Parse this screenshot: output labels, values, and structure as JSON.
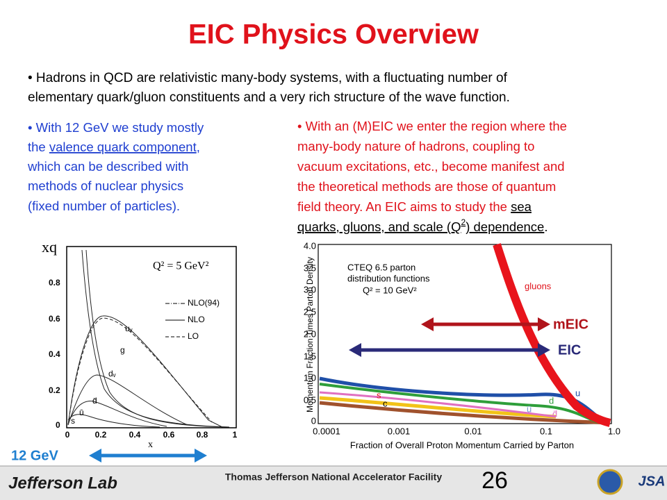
{
  "title": "EIC Physics Overview",
  "intro": [
    "• Hadrons in QCD are relativistic many-body systems, with a fluctuating number of",
    "elementary quark/gluon constituents and a very rich structure of the wave function."
  ],
  "left_bullet": [
    "• With 12 GeV we study mostly",
    "the ",
    "valence quark component",
    ",",
    "which can be described with",
    "methods of nuclear physics",
    "(fixed number of particles)."
  ],
  "right_bullet": [
    "• With an (M)EIC we enter the region where the",
    "many-body nature of hadrons, coupling to",
    "vacuum excitations, etc., become manifest and",
    "the theoretical methods are those of quantum",
    "field theory. An EIC aims to study the ",
    "sea",
    "quarks, gluons, and scale (Q",
    "2",
    ") dependence",
    "."
  ],
  "left_figure": {
    "ylabel": "xq",
    "xlabel": "x",
    "yticks": [
      "0.8",
      "0.6",
      "0.4",
      "0.2",
      "0"
    ],
    "xticks": [
      "0",
      "0.2",
      "0.4",
      "0.6",
      "0.8",
      "1"
    ],
    "annotation": "Q² = 5 GeV²",
    "legend": [
      "NLO(94)",
      "NLO",
      "LO"
    ],
    "curve_labels": [
      "uᵥ",
      "g",
      "dᵥ",
      "d̄",
      "ū",
      "s"
    ]
  },
  "right_figure": {
    "ylabel": "Momentum Fraction Times Parton Density",
    "xlabel": "Fraction of Overall Proton Momentum Carried by Parton",
    "yticks": [
      "4.0",
      "3.5",
      "3.0",
      "2.5",
      "2.0",
      "1.5",
      "1.0",
      "0.5",
      "0"
    ],
    "xticks": [
      "0.0001",
      "0.001",
      "0.01",
      "0.1",
      "1.0"
    ],
    "annotation": [
      "CTEQ 6.5 parton",
      "distribution functions",
      "Q² = 10 GeV²"
    ],
    "curve_labels": [
      "gluons",
      "u",
      "d",
      "ū",
      "d̄",
      "s",
      "c"
    ]
  },
  "ranges": [
    "mEIC",
    "EIC",
    "12 GeV"
  ],
  "footer": {
    "logo": "Jefferson Lab",
    "org": "Thomas Jefferson National Accelerator Facility",
    "page": "26",
    "jsa": "JSA"
  }
}
